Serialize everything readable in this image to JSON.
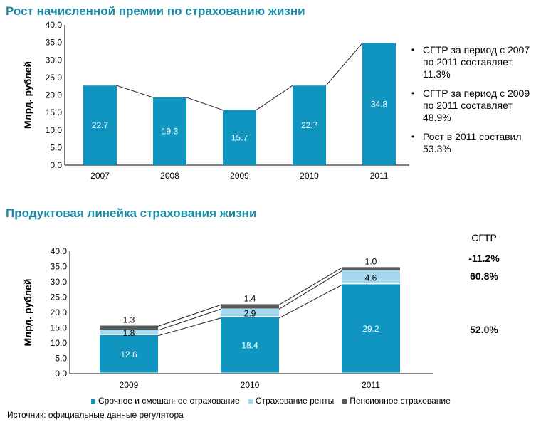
{
  "chart_data": [
    {
      "type": "bar",
      "title": "Рост начисленной премии по страхованию жизни",
      "ylabel": "Млрд. рублей",
      "categories": [
        "2007",
        "2008",
        "2009",
        "2010",
        "2011"
      ],
      "values": [
        22.7,
        19.3,
        15.7,
        22.7,
        34.8
      ],
      "ylim": [
        0,
        40
      ],
      "yticks": [
        "0.0",
        "5.0",
        "10.0",
        "15.0",
        "20.0",
        "25.0",
        "30.0",
        "35.0",
        "40.0"
      ],
      "grid": false,
      "color": "#0f95bf"
    },
    {
      "type": "bar",
      "stacked": true,
      "title": "Продуктовая линейка страхования жизни",
      "ylabel": "Млрд. рублей",
      "categories": [
        "2009",
        "2010",
        "2011"
      ],
      "ylim": [
        0,
        40
      ],
      "yticks": [
        "0.0",
        "5.0",
        "10.0",
        "15.0",
        "20.0",
        "25.0",
        "30.0",
        "35.0",
        "40.0"
      ],
      "grid": false,
      "legend": "bottom",
      "series": [
        {
          "name": "Срочное и смешанное страхование",
          "values": [
            12.6,
            18.4,
            29.2
          ],
          "color": "#0f95bf"
        },
        {
          "name": "Страхование ренты",
          "values": [
            1.8,
            2.9,
            4.6
          ],
          "color": "#a6d8f0"
        },
        {
          "name": "Пенсионное страхование",
          "values": [
            1.3,
            1.4,
            1.0
          ],
          "color": "#595959"
        }
      ]
    }
  ],
  "notes": [
    "СГТР за период с 2007 по 2011 составляет 11.3%",
    "СГТР за период с 2009 по 2011 составляет 48.9%",
    "Рост в 2011 составил 53.3%"
  ],
  "cagr": {
    "header": "СГТР",
    "values": [
      "-11.2%",
      "60.8%",
      "52.0%"
    ]
  },
  "source": "Источник: официальные данные регулятора"
}
